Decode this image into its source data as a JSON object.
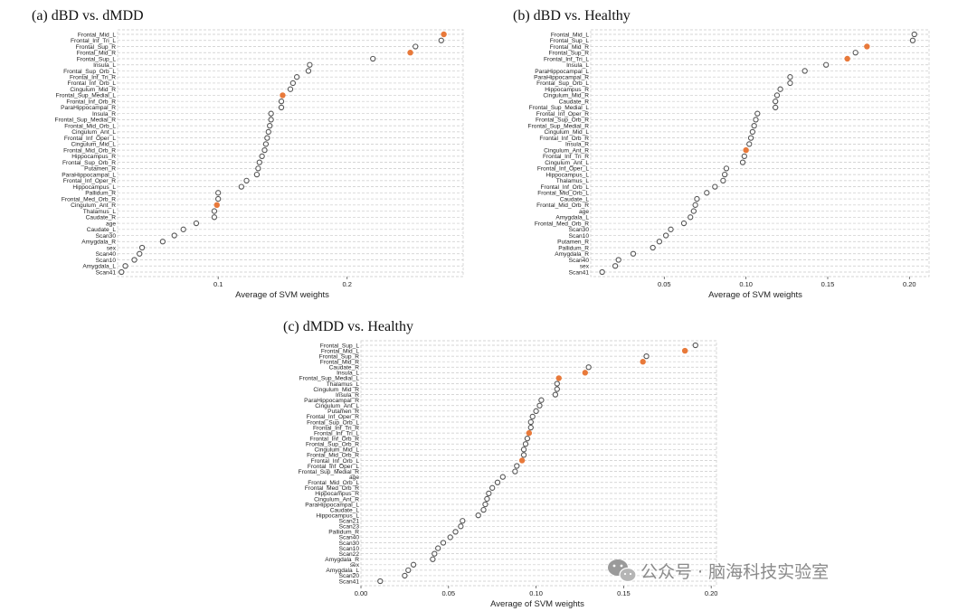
{
  "watermark": {
    "text": "公众号 · 脑海科技实验室",
    "icon": "wechat-icon"
  },
  "colors": {
    "highlight": "#e8793a",
    "marker": "#555555"
  },
  "chart_data": [
    {
      "id": "a",
      "type": "scatter",
      "title": "(a) dBD vs. dMDD",
      "xlabel": "Average of SVM weights",
      "xlim": [
        0.022,
        0.29
      ],
      "xticks": [
        {
          "v": 0.1,
          "label": "0.1"
        },
        {
          "v": 0.2,
          "label": "0.2"
        }
      ],
      "categories": [
        "Frontal_Mid_L",
        "Frontal_Inf_Tri_L",
        "Frontal_Sup_R",
        "Frontal_Mid_R",
        "Frontal_Sup_L",
        "Insula_L",
        "Frontal_Sup_Orb_L",
        "Frontal_Inf_Tri_R",
        "Frontal_Inf_Orb_L",
        "Cingulum_Mid_R",
        "Frontal_Sup_Medial_L",
        "Frontal_Inf_Orb_R",
        "ParaHippocampal_R",
        "Insula_R",
        "Frontal_Sup_Medial_R",
        "Frontal_Mid_Orb_L",
        "Cingulum_Ant_L",
        "Frontal_Inf_Oper_L",
        "Cingulum_Mid_L",
        "Frontal_Mid_Orb_R",
        "Hippocampus_R",
        "Frontal_Sup_Orb_R",
        "Putamen_R",
        "ParaHippocampal_L",
        "Frontal_Inf_Oper_R",
        "Hippocampus_L",
        "Pallidum_R",
        "Frontal_Med_Orb_R",
        "Cingulum_Ant_R",
        "Thalamus_L",
        "Caudate_R",
        "age",
        "Caudate_L",
        "Scan30",
        "Amygdala_R",
        "sex",
        "Scan40",
        "Scan10",
        "Amygdala_L",
        "Scan41"
      ],
      "values": [
        0.275,
        0.273,
        0.253,
        0.249,
        0.22,
        0.171,
        0.17,
        0.161,
        0.158,
        0.156,
        0.15,
        0.149,
        0.149,
        0.141,
        0.141,
        0.14,
        0.139,
        0.138,
        0.137,
        0.136,
        0.134,
        0.132,
        0.131,
        0.13,
        0.122,
        0.118,
        0.1,
        0.1,
        0.099,
        0.097,
        0.097,
        0.083,
        0.073,
        0.066,
        0.057,
        0.041,
        0.039,
        0.035,
        0.028,
        0.025
      ],
      "highlighted": [
        "Frontal_Mid_L",
        "Frontal_Mid_R",
        "Frontal_Sup_Medial_L",
        "Cingulum_Ant_R"
      ]
    },
    {
      "id": "b",
      "type": "scatter",
      "title": "(b) dBD vs. Healthy",
      "xlabel": "Average of SVM weights",
      "xlim": [
        0.005,
        0.212
      ],
      "xticks": [
        {
          "v": 0.05,
          "label": "0.05"
        },
        {
          "v": 0.1,
          "label": "0.10"
        },
        {
          "v": 0.15,
          "label": "0.15"
        },
        {
          "v": 0.2,
          "label": "0.20"
        }
      ],
      "categories": [
        "Frontal_Mid_L",
        "Frontal_Sup_L",
        "Frontal_Mid_R",
        "Frontal_Sup_R",
        "Frontal_Inf_Tri_L",
        "Insula_L",
        "ParaHippocampal_L",
        "ParaHippocampal_R",
        "Frontal_Sup_Orb_L",
        "Hippocampus_R",
        "Cingulum_Mid_R",
        "Caudate_R",
        "Frontal_Sup_Medial_L",
        "Frontal_Inf_Oper_R",
        "Frontal_Sup_Orb_R",
        "Frontal_Sup_Medial_R",
        "Cingulum_Mid_L",
        "Frontal_Inf_Orb_R",
        "Insula_R",
        "Cingulum_Ant_R",
        "Frontal_Inf_Tri_R",
        "Cingulum_Ant_L",
        "Frontal_Inf_Oper_L",
        "Hippocampus_L",
        "Thalamus_L",
        "Frontal_Inf_Orb_L",
        "Frontal_Mid_Orb_L",
        "Caudate_L",
        "Frontal_Mid_Orb_R",
        "age",
        "Amygdala_L",
        "Frontal_Med_Orb_R",
        "Scan30",
        "Scan10",
        "Putamen_R",
        "Pallidum_R",
        "Amygdala_R",
        "Scan40",
        "sex",
        "Scan41"
      ],
      "values": [
        0.203,
        0.202,
        0.174,
        0.167,
        0.162,
        0.149,
        0.136,
        0.127,
        0.127,
        0.121,
        0.119,
        0.118,
        0.118,
        0.107,
        0.106,
        0.105,
        0.104,
        0.103,
        0.102,
        0.1,
        0.099,
        0.098,
        0.088,
        0.087,
        0.086,
        0.081,
        0.076,
        0.07,
        0.069,
        0.068,
        0.066,
        0.062,
        0.054,
        0.051,
        0.047,
        0.043,
        0.031,
        0.022,
        0.02,
        0.012
      ],
      "highlighted": [
        "Frontal_Mid_R",
        "Frontal_Inf_Tri_L",
        "Cingulum_Ant_R"
      ]
    },
    {
      "id": "c",
      "type": "scatter",
      "title": "(c) dMDD vs. Healthy",
      "xlabel": "Average of SVM weights",
      "xlim": [
        0.0,
        0.203
      ],
      "xticks": [
        {
          "v": 0.0,
          "label": "0.00"
        },
        {
          "v": 0.05,
          "label": "0.05"
        },
        {
          "v": 0.1,
          "label": "0.10"
        },
        {
          "v": 0.15,
          "label": "0.15"
        },
        {
          "v": 0.2,
          "label": "0.20"
        }
      ],
      "categories": [
        "Frontal_Sup_L",
        "Frontal_Mid_L",
        "Frontal_Sup_R",
        "Frontal_Mid_R",
        "Caudate_R",
        "Insula_L",
        "Frontal_Sup_Medial_L",
        "Thalamus_L",
        "Cingulum_Mid_R",
        "Insula_R",
        "ParaHippocampal_R",
        "Cingulum_Ant_L",
        "Putamen_R",
        "Frontal_Inf_Oper_R",
        "Frontal_Sup_Orb_L",
        "Frontal_Inf_Tri_R",
        "Frontal_Inf_Tri_L",
        "Frontal_Inf_Orb_R",
        "Frontal_Sup_Orb_R",
        "Cingulum_Mid_L",
        "Frontal_Mid_Orb_R",
        "Frontal_Inf_Orb_L",
        "Frontal_Inf_Oper_L",
        "Frontal_Sup_Medial_R",
        "age",
        "Frontal_Mid_Orb_L",
        "Frontal_Med_Orb_R",
        "Hippocampus_R",
        "Cingulum_Ant_R",
        "ParaHippocampal_L",
        "Caudate_L",
        "Hippocampus_L",
        "Scan21",
        "Scan23",
        "Pallidum_R",
        "Scan40",
        "Scan30",
        "Scan10",
        "Scan22",
        "Amygdala_R",
        "sex",
        "Amygdala_L",
        "Scan20",
        "Scan41"
      ],
      "values": [
        0.191,
        0.185,
        0.163,
        0.161,
        0.13,
        0.128,
        0.113,
        0.112,
        0.112,
        0.111,
        0.103,
        0.102,
        0.1,
        0.098,
        0.097,
        0.097,
        0.096,
        0.095,
        0.094,
        0.093,
        0.093,
        0.092,
        0.089,
        0.088,
        0.081,
        0.078,
        0.075,
        0.073,
        0.072,
        0.071,
        0.07,
        0.067,
        0.058,
        0.057,
        0.054,
        0.051,
        0.047,
        0.044,
        0.042,
        0.041,
        0.03,
        0.027,
        0.025,
        0.011
      ],
      "highlighted": [
        "Frontal_Mid_L",
        "Frontal_Mid_R",
        "Insula_L",
        "Frontal_Sup_Medial_L",
        "Frontal_Inf_Tri_L",
        "Frontal_Inf_Orb_L"
      ]
    }
  ]
}
